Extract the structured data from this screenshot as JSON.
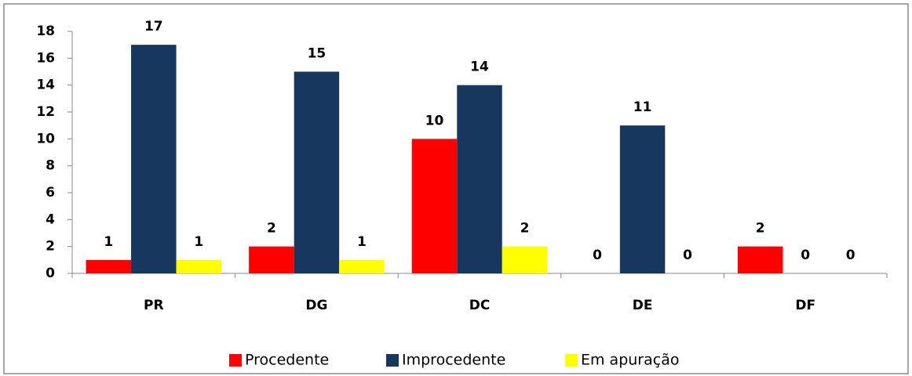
{
  "chart_data": {
    "type": "bar",
    "categories": [
      "PR",
      "DG",
      "DC",
      "DE",
      "DF"
    ],
    "series": [
      {
        "name": "Procedente",
        "color": "#ff0000",
        "values": [
          1,
          2,
          10,
          0,
          2
        ]
      },
      {
        "name": "Improcedente",
        "color": "#17375e",
        "values": [
          17,
          15,
          14,
          11,
          0
        ]
      },
      {
        "name": "Em apuração",
        "color": "#ffff00",
        "values": [
          1,
          1,
          2,
          0,
          0
        ]
      }
    ],
    "ylim": [
      0,
      18
    ],
    "yticks": [
      0,
      2,
      4,
      6,
      8,
      10,
      12,
      14,
      16,
      18
    ],
    "grid": false,
    "legend": "bottom"
  }
}
